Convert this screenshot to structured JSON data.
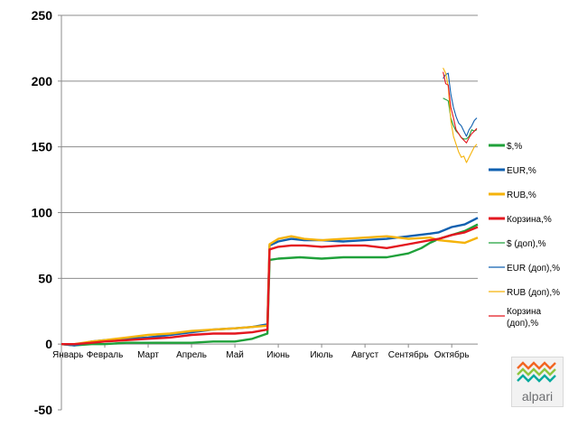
{
  "chart_data": {
    "type": "line",
    "title": "",
    "xlabel": "",
    "ylabel": "",
    "ylim": [
      -50,
      250
    ],
    "yticks": [
      "250",
      "200",
      "150",
      "100",
      "50",
      "0",
      "-50"
    ],
    "x_tick_labels": [
      "Январь",
      "Февраль",
      "Март",
      "Апрель",
      "Май",
      "Июнь",
      "Июль",
      "Август",
      "Сентябрь",
      "Октябрь"
    ],
    "grid": true,
    "legend_position": "right",
    "series": [
      {
        "name": "$,%",
        "color": "#1fa13a",
        "style": "main",
        "points": [
          [
            0.0,
            0
          ],
          [
            0.3,
            -1
          ],
          [
            0.7,
            0
          ],
          [
            1.0,
            0
          ],
          [
            1.5,
            1
          ],
          [
            2.0,
            1
          ],
          [
            2.5,
            1
          ],
          [
            3.0,
            1
          ],
          [
            3.5,
            2
          ],
          [
            4.0,
            2
          ],
          [
            4.4,
            4
          ],
          [
            4.75,
            8
          ],
          [
            4.8,
            64
          ],
          [
            5.0,
            65
          ],
          [
            5.5,
            66
          ],
          [
            6.0,
            65
          ],
          [
            6.5,
            66
          ],
          [
            7.0,
            66
          ],
          [
            7.5,
            66
          ],
          [
            8.0,
            69
          ],
          [
            8.3,
            73
          ],
          [
            8.5,
            77
          ],
          [
            8.7,
            80
          ],
          [
            9.0,
            83
          ],
          [
            9.3,
            86
          ],
          [
            9.6,
            91
          ]
        ]
      },
      {
        "name": "EUR,%",
        "color": "#1060b0",
        "style": "main",
        "points": [
          [
            0.0,
            0
          ],
          [
            0.3,
            -1
          ],
          [
            0.7,
            2
          ],
          [
            1.0,
            3
          ],
          [
            1.5,
            4
          ],
          [
            2.0,
            5
          ],
          [
            2.5,
            7
          ],
          [
            3.0,
            9
          ],
          [
            3.5,
            11
          ],
          [
            4.0,
            12
          ],
          [
            4.4,
            13
          ],
          [
            4.75,
            15
          ],
          [
            4.8,
            75
          ],
          [
            5.0,
            78
          ],
          [
            5.3,
            80
          ],
          [
            5.6,
            79
          ],
          [
            6.0,
            79
          ],
          [
            6.5,
            78
          ],
          [
            7.0,
            79
          ],
          [
            7.5,
            80
          ],
          [
            8.0,
            82
          ],
          [
            8.5,
            84
          ],
          [
            8.7,
            85
          ],
          [
            9.0,
            89
          ],
          [
            9.3,
            91
          ],
          [
            9.6,
            96
          ]
        ]
      },
      {
        "name": "RUB,%",
        "color": "#f5b30a",
        "style": "main",
        "points": [
          [
            0.0,
            0
          ],
          [
            0.3,
            0
          ],
          [
            0.7,
            2
          ],
          [
            1.0,
            3
          ],
          [
            1.5,
            5
          ],
          [
            2.0,
            7
          ],
          [
            2.5,
            8
          ],
          [
            3.0,
            10
          ],
          [
            3.5,
            11
          ],
          [
            4.0,
            12
          ],
          [
            4.4,
            13
          ],
          [
            4.75,
            14
          ],
          [
            4.8,
            76
          ],
          [
            5.0,
            80
          ],
          [
            5.3,
            82
          ],
          [
            5.6,
            80
          ],
          [
            6.0,
            79
          ],
          [
            6.5,
            80
          ],
          [
            7.0,
            81
          ],
          [
            7.5,
            82
          ],
          [
            8.0,
            80
          ],
          [
            8.5,
            81
          ],
          [
            8.7,
            79
          ],
          [
            9.0,
            78
          ],
          [
            9.3,
            77
          ],
          [
            9.6,
            81
          ]
        ]
      },
      {
        "name": "Корзина,%",
        "color": "#e3171f",
        "style": "main",
        "points": [
          [
            0.0,
            0
          ],
          [
            0.3,
            0
          ],
          [
            0.7,
            1
          ],
          [
            1.0,
            2
          ],
          [
            1.5,
            3
          ],
          [
            2.0,
            4
          ],
          [
            2.5,
            5
          ],
          [
            3.0,
            7
          ],
          [
            3.5,
            8
          ],
          [
            4.0,
            8
          ],
          [
            4.4,
            9
          ],
          [
            4.75,
            11
          ],
          [
            4.8,
            72
          ],
          [
            5.0,
            74
          ],
          [
            5.3,
            75
          ],
          [
            5.6,
            75
          ],
          [
            6.0,
            74
          ],
          [
            6.5,
            75
          ],
          [
            7.0,
            75
          ],
          [
            7.5,
            73
          ],
          [
            8.0,
            76
          ],
          [
            8.5,
            79
          ],
          [
            8.7,
            80
          ],
          [
            9.0,
            83
          ],
          [
            9.3,
            85
          ],
          [
            9.6,
            89
          ]
        ]
      },
      {
        "name": "$ (доп),%",
        "color": "#1fa13a",
        "style": "thin",
        "points": [
          [
            8.8,
            187
          ],
          [
            8.86,
            186
          ],
          [
            8.92,
            185
          ],
          [
            8.98,
            172
          ],
          [
            9.04,
            166
          ],
          [
            9.1,
            162
          ],
          [
            9.16,
            160
          ],
          [
            9.22,
            157
          ],
          [
            9.28,
            156
          ],
          [
            9.34,
            156
          ],
          [
            9.4,
            158
          ],
          [
            9.46,
            163
          ],
          [
            9.52,
            162
          ],
          [
            9.58,
            163
          ]
        ]
      },
      {
        "name": "EUR (доп),%",
        "color": "#1060b0",
        "style": "thin",
        "points": [
          [
            8.8,
            202
          ],
          [
            8.86,
            205
          ],
          [
            8.92,
            206
          ],
          [
            8.98,
            190
          ],
          [
            9.04,
            180
          ],
          [
            9.1,
            173
          ],
          [
            9.16,
            168
          ],
          [
            9.22,
            166
          ],
          [
            9.28,
            162
          ],
          [
            9.34,
            158
          ],
          [
            9.4,
            163
          ],
          [
            9.46,
            166
          ],
          [
            9.52,
            170
          ],
          [
            9.58,
            172
          ]
        ]
      },
      {
        "name": "RUB (доп),%",
        "color": "#f5b30a",
        "style": "thin",
        "points": [
          [
            8.8,
            210
          ],
          [
            8.86,
            206
          ],
          [
            8.92,
            196
          ],
          [
            8.98,
            170
          ],
          [
            9.04,
            158
          ],
          [
            9.1,
            152
          ],
          [
            9.16,
            146
          ],
          [
            9.22,
            142
          ],
          [
            9.28,
            143
          ],
          [
            9.34,
            138
          ],
          [
            9.4,
            142
          ],
          [
            9.46,
            146
          ],
          [
            9.52,
            150
          ],
          [
            9.58,
            152
          ]
        ]
      },
      {
        "name": "Корзина\n(доп),%",
        "color": "#e3171f",
        "style": "thin",
        "points": [
          [
            8.8,
            207
          ],
          [
            8.86,
            198
          ],
          [
            8.92,
            197
          ],
          [
            8.98,
            180
          ],
          [
            9.04,
            172
          ],
          [
            9.1,
            163
          ],
          [
            9.16,
            160
          ],
          [
            9.22,
            157
          ],
          [
            9.28,
            155
          ],
          [
            9.34,
            153
          ],
          [
            9.4,
            157
          ],
          [
            9.46,
            160
          ],
          [
            9.52,
            162
          ],
          [
            9.58,
            164
          ]
        ]
      }
    ]
  },
  "logo": {
    "text": "alpari",
    "colors": [
      "#f26522",
      "#8dc63f",
      "#00a99d"
    ]
  }
}
